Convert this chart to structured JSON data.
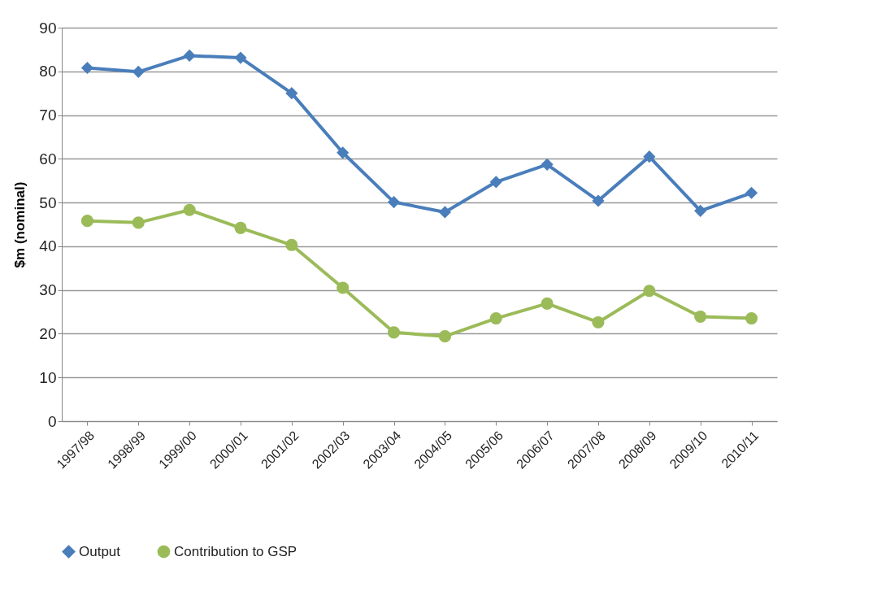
{
  "chart_data": {
    "type": "line",
    "ylabel": "$m (nominal)",
    "categories": [
      "1997/98",
      "1998/99",
      "1999/00",
      "2000/01",
      "2001/02",
      "2002/03",
      "2003/04",
      "2004/05",
      "2005/06",
      "2006/07",
      "2007/08",
      "2008/09",
      "2009/10",
      "2010/11"
    ],
    "series": [
      {
        "name": "Output",
        "color": "#4a7ebb",
        "marker": "diamond",
        "values": [
          80.8,
          79.9,
          83.6,
          83.1,
          75.0,
          61.4,
          50.1,
          47.8,
          54.7,
          58.7,
          50.4,
          60.5,
          48.1,
          52.2
        ]
      },
      {
        "name": "Contribution to GSP",
        "color": "#9bbb59",
        "marker": "circle",
        "values": [
          45.8,
          45.4,
          48.3,
          44.2,
          40.3,
          30.5,
          20.3,
          19.4,
          23.5,
          26.9,
          22.6,
          29.8,
          23.9,
          23.5
        ]
      }
    ],
    "ylim": [
      0,
      90
    ],
    "yticks": [
      0,
      10,
      20,
      30,
      40,
      50,
      60,
      70,
      80,
      90
    ],
    "grid": "y",
    "legend": "bottom",
    "line_style": "solid"
  }
}
